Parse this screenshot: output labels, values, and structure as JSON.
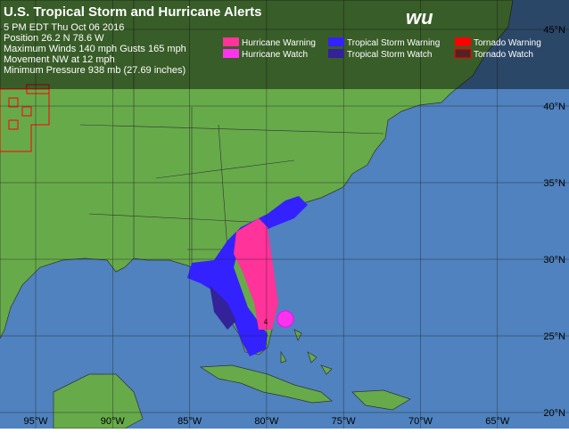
{
  "header": {
    "title": "U.S. Tropical Storm and Hurricane Alerts",
    "lines": [
      "5 PM EDT Thu Oct 06 2016",
      "Position 26.2 N 78.6 W",
      "Maximum Winds 140 mph  Gusts 165 mph",
      "Movement NW at 12 mph",
      "Minimum Pressure 938 mb (27.69 inches)"
    ]
  },
  "logo": "wu",
  "legend": [
    {
      "label": "Hurricane Warning",
      "color": "#ff3399"
    },
    {
      "label": "Tropical Storm Warning",
      "color": "#3322ff"
    },
    {
      "label": "Tornado Warning",
      "color": "#ff0000"
    },
    {
      "label": "Hurricane Watch",
      "color": "#ff33ee"
    },
    {
      "label": "Tropical Storm Watch",
      "color": "#332299"
    },
    {
      "label": "Tornado Watch",
      "color": "#552222"
    }
  ],
  "latitude_labels": [
    "45°N",
    "40°N",
    "35°N",
    "30°N",
    "25°N",
    "20°N"
  ],
  "longitude_labels": [
    "95°W",
    "90°W",
    "85°W",
    "80°W",
    "75°W",
    "70°W",
    "65°W"
  ],
  "storm_marker": "4"
}
